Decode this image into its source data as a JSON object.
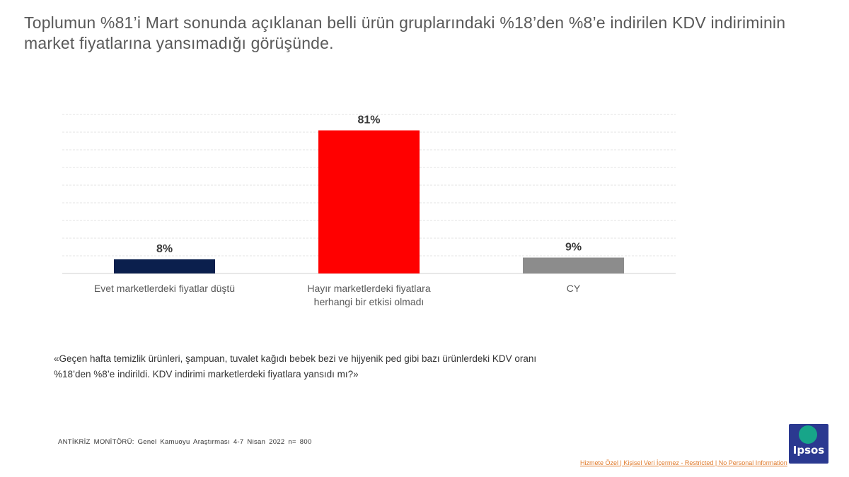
{
  "title": "Toplumun %81’i Mart sonunda açıklanan belli ürün gruplarındaki %18’den %8’e indirilen KDV indiriminin market fiyatlarına yansımadığı görüşünde.",
  "chart_data": {
    "type": "bar",
    "categories": [
      [
        "Evet marketlerdeki fiyatlar düştü"
      ],
      [
        "Hayır marketlerdeki fiyatlara",
        "herhangi bir etkisi olmadı"
      ],
      [
        "CY"
      ]
    ],
    "values": [
      8,
      81,
      9
    ],
    "data_labels": [
      "8%",
      "81%",
      "9%"
    ],
    "colors": [
      "#0b1f4d",
      "#ff0000",
      "#8c8c8c"
    ],
    "ylim": [
      0,
      90
    ],
    "grid": true
  },
  "quote": {
    "line1": "«Geçen hafta temizlik ürünleri, şampuan, tuvalet kağıdı bebek bezi ve hijyenik ped gibi bazı ürünlerdeki KDV oranı",
    "line2": "%18’den %8’e indirildi. KDV indirimi marketlerdeki fiyatlara yansıdı mı?»"
  },
  "source": "ANTİKRİZ MONİTÖRÜ: Genel Kamuoyu Araştırması 4-7 Nisan 2022 n= 800",
  "logo_text": "Ipsos",
  "classification": "Hizmete Özel | Kişisel Veri İçermez - Restricted | No Personal Information"
}
